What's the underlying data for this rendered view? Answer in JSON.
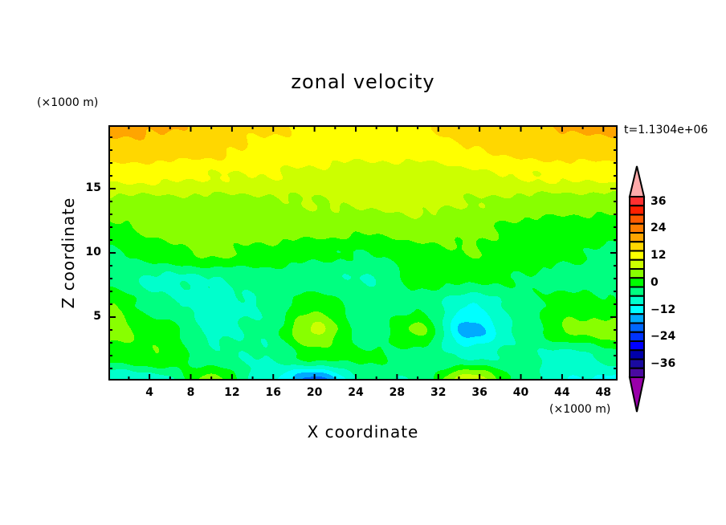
{
  "chart_data": {
    "type": "heatmap",
    "subtype": "filled-contour",
    "title": "zonal velocity",
    "xlabel": "X coordinate",
    "ylabel": "Z coordinate",
    "x_unit": "(×1000 m)",
    "y_unit": "(×1000 m)",
    "annotation": "t=1.1304e+06",
    "xlim": [
      0.1,
      49.3
    ],
    "ylim": [
      0.125,
      19.875
    ],
    "xticks": [
      "4",
      "8",
      "12",
      "16",
      "20",
      "24",
      "28",
      "32",
      "36",
      "40",
      "44",
      "48"
    ],
    "xtick_values": [
      4,
      8,
      12,
      16,
      20,
      24,
      28,
      32,
      36,
      40,
      44,
      48
    ],
    "yticks": [
      "5",
      "10",
      "15"
    ],
    "ytick_values": [
      5,
      10,
      15
    ],
    "grid": false,
    "grid_x": [
      0,
      5,
      10,
      15,
      20,
      25,
      30,
      35,
      40,
      45,
      50
    ],
    "grid_z": [
      20,
      18,
      16,
      14,
      12,
      10,
      8,
      6,
      4,
      2,
      0
    ],
    "values": [
      [
        21,
        21,
        18,
        17,
        15,
        14,
        15,
        18,
        19,
        21,
        21
      ],
      [
        19,
        18,
        17,
        15,
        14,
        13,
        14,
        16,
        17,
        18,
        18
      ],
      [
        13,
        13,
        12,
        12,
        11,
        10,
        9,
        11,
        12,
        13,
        13
      ],
      [
        7,
        7,
        7,
        7,
        8,
        9,
        9,
        8,
        7,
        6,
        6
      ],
      [
        3,
        5,
        6,
        6,
        6,
        5,
        7,
        5,
        3,
        2,
        2
      ],
      [
        -1,
        3,
        5,
        3,
        1,
        0,
        2,
        4,
        2,
        1,
        -2
      ],
      [
        -2,
        -5,
        -4,
        -2,
        -3,
        -4,
        1,
        1,
        0,
        -2,
        -3
      ],
      [
        4,
        -3,
        -6,
        -4,
        3,
        -3,
        -1,
        -8,
        -2,
        3,
        0
      ],
      [
        6,
        2,
        -5,
        -3,
        9,
        -3,
        5,
        -14,
        -3,
        5,
        7
      ],
      [
        2,
        4,
        -3,
        -4,
        2,
        1,
        -2,
        -5,
        -3,
        -6,
        0
      ],
      [
        -9,
        -6,
        6,
        -6,
        -18,
        -3,
        -4,
        12,
        -2,
        -8,
        -10
      ]
    ],
    "colorbar": {
      "levels": [
        -40,
        -36,
        -32,
        -28,
        -24,
        -20,
        -16,
        -12,
        -8,
        -4,
        0,
        4,
        8,
        12,
        16,
        20,
        24,
        28,
        32,
        36,
        40
      ],
      "labels": [
        "36",
        "24",
        "12",
        "0",
        "−12",
        "−24",
        "−36"
      ],
      "label_values": [
        36,
        24,
        12,
        0,
        -12,
        -24,
        -36
      ],
      "colors": [
        "#4a0aa0",
        "#1a0aa0",
        "#0000aa",
        "#0000ff",
        "#0033ff",
        "#0066ff",
        "#00aaff",
        "#00ffff",
        "#00ffcc",
        "#00ff80",
        "#00ff00",
        "#88ff00",
        "#ccff00",
        "#ffff00",
        "#ffd700",
        "#ffa500",
        "#ff7d00",
        "#ff5a00",
        "#ff2000",
        "#ff3030"
      ],
      "over_color": "#ffaaaa",
      "under_color": "#9900aa"
    }
  }
}
